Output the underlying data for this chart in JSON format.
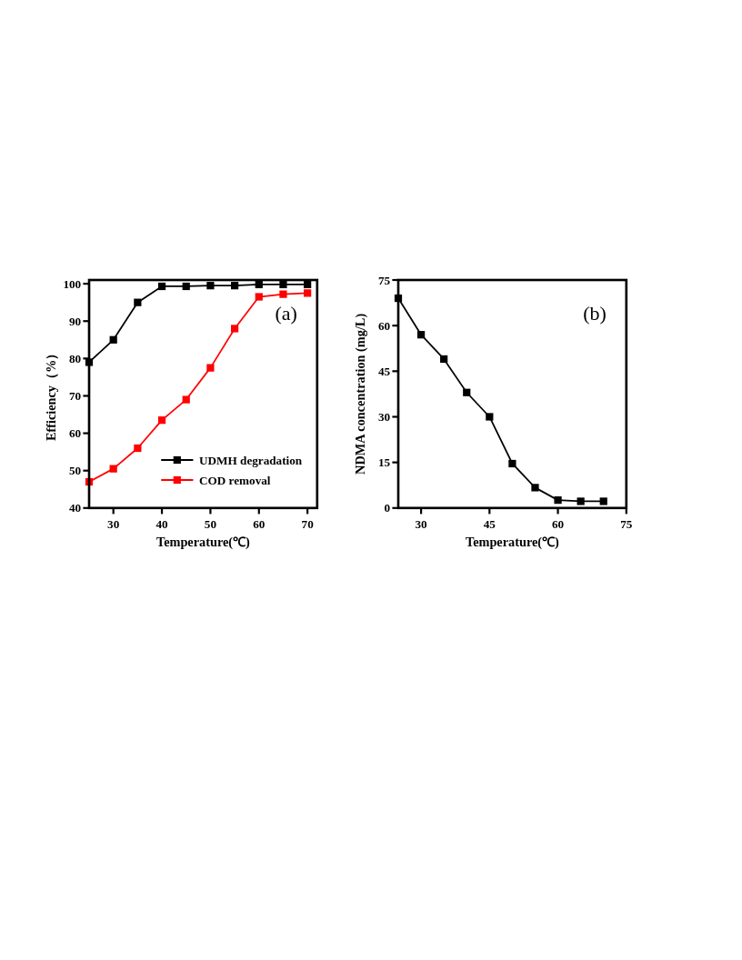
{
  "chart_data": [
    {
      "type": "line",
      "xlabel": "Temperature(℃)",
      "ylabel": "Efficiency（%）",
      "x": [
        25,
        30,
        35,
        40,
        45,
        50,
        55,
        60,
        65,
        70
      ],
      "xlim": [
        25,
        72
      ],
      "xticks": [
        30,
        40,
        50,
        60,
        70
      ],
      "ylim": [
        40,
        101
      ],
      "yticks": [
        40,
        50,
        60,
        70,
        80,
        90,
        100
      ],
      "marker": "square",
      "legend": "bottom right",
      "annotations": [
        "(a)"
      ],
      "series": [
        {
          "name": "UDMH degradation",
          "color": "#000000",
          "values": [
            79,
            85,
            95,
            99.3,
            99.3,
            99.5,
            99.5,
            99.8,
            99.8,
            99.8
          ]
        },
        {
          "name": "COD removal",
          "color": "#ff0000",
          "values": [
            47,
            50.5,
            56,
            63.5,
            69,
            77.5,
            88,
            96.5,
            97.2,
            97.5
          ]
        }
      ]
    },
    {
      "type": "line",
      "xlabel": "Temperature(℃)",
      "ylabel": "NDMA concentration (mg/L)",
      "x": [
        25,
        30,
        35,
        40,
        45,
        50,
        55,
        60,
        65,
        70
      ],
      "xlim": [
        25,
        75
      ],
      "xticks": [
        30,
        45,
        60,
        75
      ],
      "ylim": [
        0,
        75
      ],
      "yticks": [
        0,
        15,
        30,
        45,
        60,
        75
      ],
      "marker": "square",
      "annotations": [
        "(b)"
      ],
      "series": [
        {
          "color": "#000000",
          "values": [
            69,
            57,
            49,
            38,
            30,
            14.6,
            6.7,
            2.6,
            2.2,
            2.2
          ]
        }
      ]
    }
  ]
}
